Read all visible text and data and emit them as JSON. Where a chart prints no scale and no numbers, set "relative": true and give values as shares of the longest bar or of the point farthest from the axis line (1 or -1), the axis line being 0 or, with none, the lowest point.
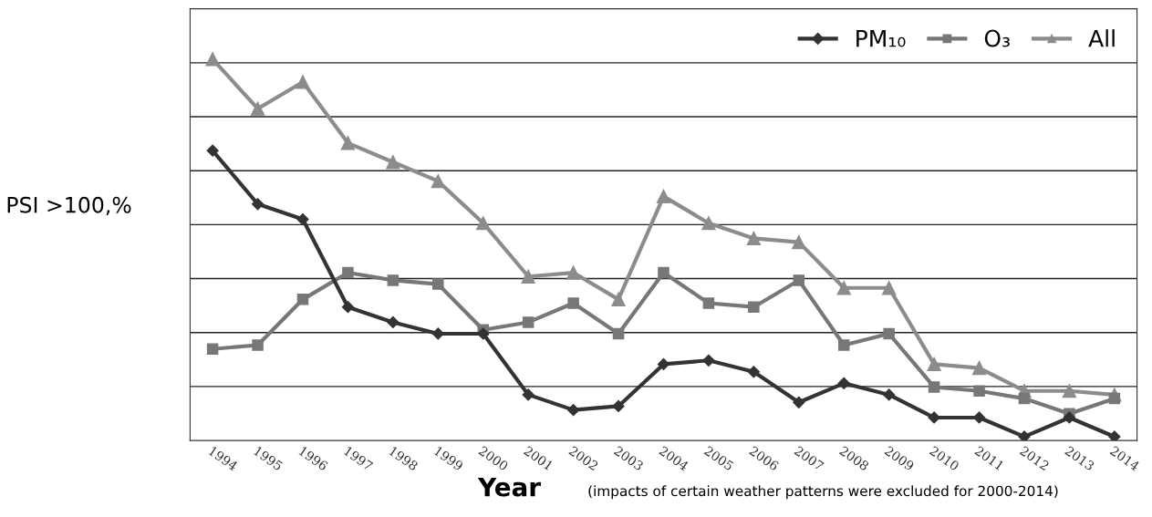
{
  "chart_data": {
    "type": "line",
    "relative": true,
    "ylabel": "PSI >100,%",
    "xlabel": "Year",
    "annotations": [
      "(impacts of certain weather patterns were excluded for 2000-2014)"
    ],
    "categories": [
      "1994",
      "1995",
      "1996",
      "1997",
      "1998",
      "1999",
      "2000",
      "2001",
      "2002",
      "2003",
      "2004",
      "2005",
      "2006",
      "2007",
      "2008",
      "2009",
      "2010",
      "2011",
      "2012",
      "2013",
      "2014"
    ],
    "series": [
      {
        "name": "PM₁₀",
        "color": "#333333",
        "marker": "diamond",
        "values": [
          0.76,
          0.62,
          0.58,
          0.35,
          0.31,
          0.28,
          0.28,
          0.12,
          0.08,
          0.09,
          0.2,
          0.21,
          0.18,
          0.1,
          0.15,
          0.12,
          0.06,
          0.06,
          0.01,
          0.06,
          0.01
        ]
      },
      {
        "name": "O₃",
        "color": "#777777",
        "marker": "square",
        "values": [
          0.24,
          0.25,
          0.37,
          0.44,
          0.42,
          0.41,
          0.29,
          0.31,
          0.36,
          0.28,
          0.44,
          0.36,
          0.35,
          0.42,
          0.25,
          0.28,
          0.14,
          0.13,
          0.11,
          0.07,
          0.11
        ]
      },
      {
        "name": "All",
        "color": "#8c8c8c",
        "marker": "triangle",
        "values": [
          1.0,
          0.87,
          0.94,
          0.78,
          0.73,
          0.68,
          0.57,
          0.43,
          0.44,
          0.37,
          0.64,
          0.57,
          0.53,
          0.52,
          0.4,
          0.4,
          0.2,
          0.19,
          0.13,
          0.13,
          0.12
        ]
      }
    ],
    "grid": "y",
    "legend": "top right",
    "line_style": "solid"
  }
}
